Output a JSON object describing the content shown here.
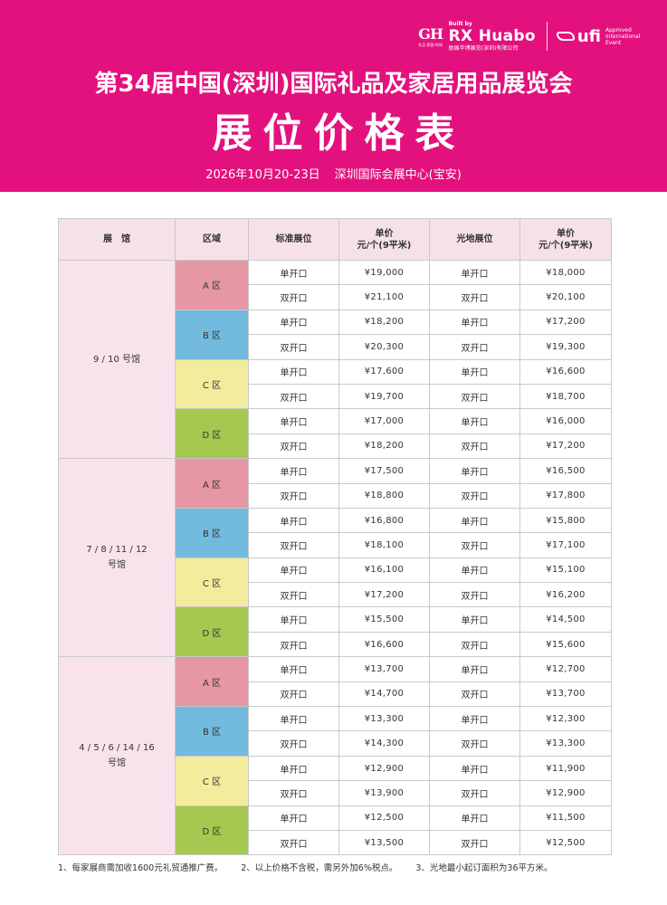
{
  "header": {
    "title": "第34届中国(深圳)国际礼品及家居用品展览会",
    "subtitle": "展位价格表",
    "date": "2026年10月20-23日",
    "venue": "深圳国际会展中心(宝安)",
    "background_color": "#e3117d",
    "logos": {
      "gh_mark": "GH",
      "gh_tagline": "礼品·家居·时尚",
      "built_by": "Built by",
      "rx_name": "RX Huabo",
      "rx_sub": "励展华博展览(深圳)有限公司",
      "ufi_name": "ufi",
      "ufi_note": "Approved International Event"
    }
  },
  "table": {
    "columns": [
      "展　馆",
      "区域",
      "标准展位",
      "单价\n元/个(9平米)",
      "光地展位",
      "单价\n元/个(9平米)"
    ],
    "zone_colors": {
      "A": "#e597a3",
      "B": "#72bade",
      "C": "#f2ec9c",
      "D": "#a4c850"
    },
    "halls": [
      {
        "name": "9 / 10  号馆",
        "zones": [
          {
            "label": "A 区",
            "key": "A",
            "rows": [
              {
                "std": "单开口",
                "std_price": "¥19,000",
                "raw": "单开口",
                "raw_price": "¥18,000"
              },
              {
                "std": "双开口",
                "std_price": "¥21,100",
                "raw": "双开口",
                "raw_price": "¥20,100"
              }
            ]
          },
          {
            "label": "B 区",
            "key": "B",
            "rows": [
              {
                "std": "单开口",
                "std_price": "¥18,200",
                "raw": "单开口",
                "raw_price": "¥17,200"
              },
              {
                "std": "双开口",
                "std_price": "¥20,300",
                "raw": "双开口",
                "raw_price": "¥19,300"
              }
            ]
          },
          {
            "label": "C 区",
            "key": "C",
            "rows": [
              {
                "std": "单开口",
                "std_price": "¥17,600",
                "raw": "单开口",
                "raw_price": "¥16,600"
              },
              {
                "std": "双开口",
                "std_price": "¥19,700",
                "raw": "双开口",
                "raw_price": "¥18,700"
              }
            ]
          },
          {
            "label": "D 区",
            "key": "D",
            "rows": [
              {
                "std": "单开口",
                "std_price": "¥17,000",
                "raw": "单开口",
                "raw_price": "¥16,000"
              },
              {
                "std": "双开口",
                "std_price": "¥18,200",
                "raw": "双开口",
                "raw_price": "¥17,200"
              }
            ]
          }
        ]
      },
      {
        "name": "7 / 8 / 11 / 12\n号馆",
        "zones": [
          {
            "label": "A 区",
            "key": "A",
            "rows": [
              {
                "std": "单开口",
                "std_price": "¥17,500",
                "raw": "单开口",
                "raw_price": "¥16,500"
              },
              {
                "std": "双开口",
                "std_price": "¥18,800",
                "raw": "双开口",
                "raw_price": "¥17,800"
              }
            ]
          },
          {
            "label": "B 区",
            "key": "B",
            "rows": [
              {
                "std": "单开口",
                "std_price": "¥16,800",
                "raw": "单开口",
                "raw_price": "¥15,800"
              },
              {
                "std": "双开口",
                "std_price": "¥18,100",
                "raw": "双开口",
                "raw_price": "¥17,100"
              }
            ]
          },
          {
            "label": "C 区",
            "key": "C",
            "rows": [
              {
                "std": "单开口",
                "std_price": "¥16,100",
                "raw": "单开口",
                "raw_price": "¥15,100"
              },
              {
                "std": "双开口",
                "std_price": "¥17,200",
                "raw": "双开口",
                "raw_price": "¥16,200"
              }
            ]
          },
          {
            "label": "D 区",
            "key": "D",
            "rows": [
              {
                "std": "单开口",
                "std_price": "¥15,500",
                "raw": "单开口",
                "raw_price": "¥14,500"
              },
              {
                "std": "双开口",
                "std_price": "¥16,600",
                "raw": "双开口",
                "raw_price": "¥15,600"
              }
            ]
          }
        ]
      },
      {
        "name": "4 / 5 / 6 / 14 / 16\n号馆",
        "zones": [
          {
            "label": "A 区",
            "key": "A",
            "rows": [
              {
                "std": "单开口",
                "std_price": "¥13,700",
                "raw": "单开口",
                "raw_price": "¥12,700"
              },
              {
                "std": "双开口",
                "std_price": "¥14,700",
                "raw": "双开口",
                "raw_price": "¥13,700"
              }
            ]
          },
          {
            "label": "B 区",
            "key": "B",
            "rows": [
              {
                "std": "单开口",
                "std_price": "¥13,300",
                "raw": "单开口",
                "raw_price": "¥12,300"
              },
              {
                "std": "双开口",
                "std_price": "¥14,300",
                "raw": "双开口",
                "raw_price": "¥13,300"
              }
            ]
          },
          {
            "label": "C 区",
            "key": "C",
            "rows": [
              {
                "std": "单开口",
                "std_price": "¥12,900",
                "raw": "单开口",
                "raw_price": "¥11,900"
              },
              {
                "std": "双开口",
                "std_price": "¥13,900",
                "raw": "双开口",
                "raw_price": "¥12,900"
              }
            ]
          },
          {
            "label": "D 区",
            "key": "D",
            "rows": [
              {
                "std": "单开口",
                "std_price": "¥12,500",
                "raw": "单开口",
                "raw_price": "¥11,500"
              },
              {
                "std": "双开口",
                "std_price": "¥13,500",
                "raw": "双开口",
                "raw_price": "¥12,500"
              }
            ]
          }
        ]
      }
    ]
  },
  "notes": [
    "1、每家展商需加收1600元礼贸通推广费。",
    "2、以上价格不含税，需另外加6%税点。",
    "3、光地最小起订面积为36平方米。"
  ]
}
